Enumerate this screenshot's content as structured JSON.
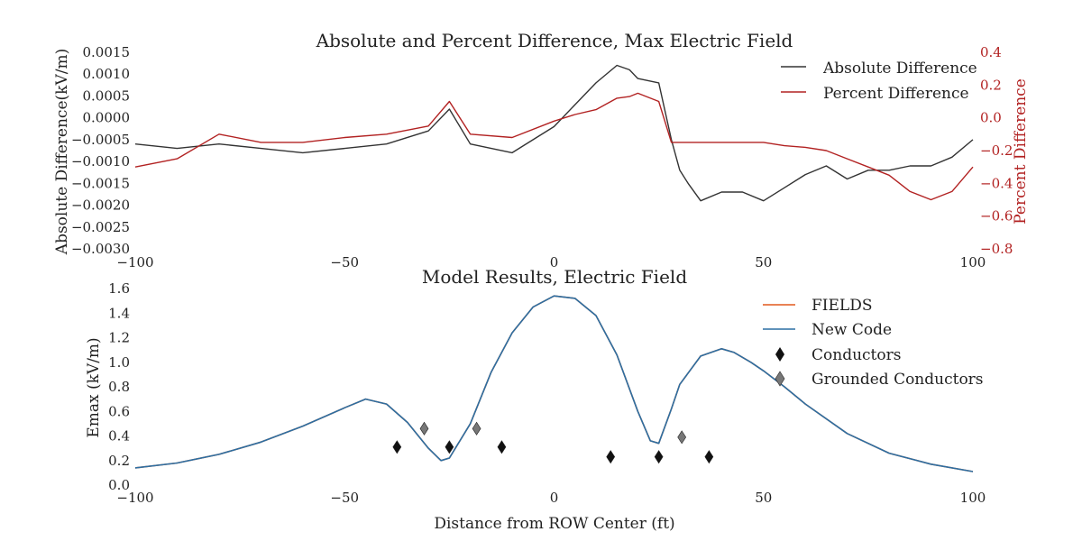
{
  "chart_data": [
    {
      "type": "line",
      "title": "Absolute and Percent Difference, Max Electric Field",
      "xlabel": "",
      "ylabel": "Absolute Difference(kV/m)",
      "y2label": "Percent Difference",
      "xlim": [
        -100,
        100
      ],
      "ylim": [
        -0.003,
        0.0015
      ],
      "y2lim": [
        -0.8,
        0.4
      ],
      "xticks": [
        "−100",
        "−50",
        "0",
        "50",
        "100"
      ],
      "yticks": [
        "0.0015",
        "0.0010",
        "0.0005",
        "0.0000",
        "−0.0005",
        "−0.0010",
        "−0.0015",
        "−0.0020",
        "−0.0025",
        "−0.0030"
      ],
      "y2ticks": [
        "0.4",
        "0.2",
        "0.0",
        "−0.2",
        "−0.4",
        "−0.6",
        "−0.8"
      ],
      "grid": false,
      "legend_position": "top-right",
      "series": [
        {
          "name": "Absolute Difference",
          "color": "#333333",
          "axis": "left",
          "x": [
            -100,
            -90,
            -80,
            -70,
            -60,
            -50,
            -40,
            -30,
            -25,
            -20,
            -10,
            0,
            5,
            10,
            15,
            18,
            20,
            25,
            28,
            30,
            32,
            35,
            40,
            45,
            50,
            55,
            60,
            65,
            70,
            75,
            80,
            85,
            90,
            95,
            100
          ],
          "y": [
            -0.0006,
            -0.0007,
            -0.0006,
            -0.0007,
            -0.0008,
            -0.0007,
            -0.0006,
            -0.0003,
            0.0002,
            -0.0006,
            -0.0008,
            -0.0002,
            0.0003,
            0.0008,
            0.0012,
            0.0011,
            0.0009,
            0.0008,
            -0.0005,
            -0.0012,
            -0.0015,
            -0.0019,
            -0.0017,
            -0.0017,
            -0.0019,
            -0.0016,
            -0.0013,
            -0.0011,
            -0.0014,
            -0.0012,
            -0.0012,
            -0.0011,
            -0.0011,
            -0.0009,
            -0.0005
          ]
        },
        {
          "name": "Percent Difference",
          "color": "#b22222",
          "axis": "right",
          "x": [
            -100,
            -90,
            -80,
            -70,
            -60,
            -50,
            -40,
            -30,
            -25,
            -20,
            -10,
            0,
            5,
            10,
            15,
            18,
            20,
            25,
            28,
            30,
            32,
            35,
            40,
            45,
            50,
            55,
            60,
            65,
            70,
            75,
            80,
            85,
            90,
            95,
            100
          ],
          "y": [
            -0.3,
            -0.25,
            -0.1,
            -0.15,
            -0.15,
            -0.12,
            -0.1,
            -0.05,
            0.1,
            -0.1,
            -0.12,
            -0.02,
            0.02,
            0.05,
            0.12,
            0.13,
            0.15,
            0.1,
            -0.15,
            -0.15,
            -0.15,
            -0.15,
            -0.15,
            -0.15,
            -0.15,
            -0.17,
            -0.18,
            -0.2,
            -0.25,
            -0.3,
            -0.35,
            -0.45,
            -0.5,
            -0.45,
            -0.3
          ]
        }
      ]
    },
    {
      "type": "line",
      "title": "Model Results, Electric Field",
      "xlabel": "Distance from ROW Center (ft)",
      "ylabel": "Emax (kV/m)",
      "xlim": [
        -100,
        100
      ],
      "ylim": [
        0.0,
        1.6
      ],
      "xticks": [
        "−100",
        "−50",
        "0",
        "50",
        "100"
      ],
      "yticks": [
        "1.6",
        "1.4",
        "1.2",
        "1.0",
        "0.8",
        "0.6",
        "0.4",
        "0.2",
        "0.0"
      ],
      "grid": false,
      "legend_position": "top-right",
      "series": [
        {
          "name": "FIELDS",
          "color": "#e2581d",
          "x": [
            -100,
            -90,
            -80,
            -70,
            -60,
            -50,
            -45,
            -40,
            -35,
            -30,
            -27,
            -25,
            -20,
            -15,
            -10,
            -5,
            0,
            5,
            10,
            15,
            20,
            23,
            25,
            28,
            30,
            35,
            40,
            43,
            47,
            50,
            55,
            60,
            70,
            80,
            90,
            100
          ],
          "y": [
            0.14,
            0.18,
            0.25,
            0.35,
            0.48,
            0.63,
            0.7,
            0.66,
            0.51,
            0.3,
            0.2,
            0.22,
            0.5,
            0.92,
            1.24,
            1.45,
            1.54,
            1.52,
            1.38,
            1.06,
            0.6,
            0.36,
            0.34,
            0.62,
            0.82,
            1.05,
            1.11,
            1.08,
            1.0,
            0.93,
            0.8,
            0.66,
            0.42,
            0.26,
            0.17,
            0.11
          ]
        },
        {
          "name": "New Code",
          "color": "#2c6fa3",
          "x": [
            -100,
            -90,
            -80,
            -70,
            -60,
            -50,
            -45,
            -40,
            -35,
            -30,
            -27,
            -25,
            -20,
            -15,
            -10,
            -5,
            0,
            5,
            10,
            15,
            20,
            23,
            25,
            28,
            30,
            35,
            40,
            43,
            47,
            50,
            55,
            60,
            70,
            80,
            90,
            100
          ],
          "y": [
            0.14,
            0.18,
            0.25,
            0.35,
            0.48,
            0.63,
            0.7,
            0.66,
            0.51,
            0.3,
            0.2,
            0.22,
            0.5,
            0.92,
            1.24,
            1.45,
            1.54,
            1.52,
            1.38,
            1.06,
            0.6,
            0.36,
            0.34,
            0.62,
            0.82,
            1.05,
            1.11,
            1.08,
            1.0,
            0.93,
            0.8,
            0.66,
            0.42,
            0.26,
            0.17,
            0.11
          ]
        },
        {
          "name": "Conductors",
          "type": "scatter",
          "marker": "diamond",
          "color": "#111111",
          "x": [
            -37.5,
            -25,
            -12.5,
            13.5,
            25,
            37
          ],
          "y": [
            0.31,
            0.31,
            0.31,
            0.23,
            0.23,
            0.23
          ]
        },
        {
          "name": "Grounded Conductors",
          "type": "scatter",
          "marker": "diamond",
          "color": "#777777",
          "x": [
            -31,
            -18.5,
            30.5
          ],
          "y": [
            0.46,
            0.46,
            0.39
          ]
        }
      ]
    }
  ]
}
